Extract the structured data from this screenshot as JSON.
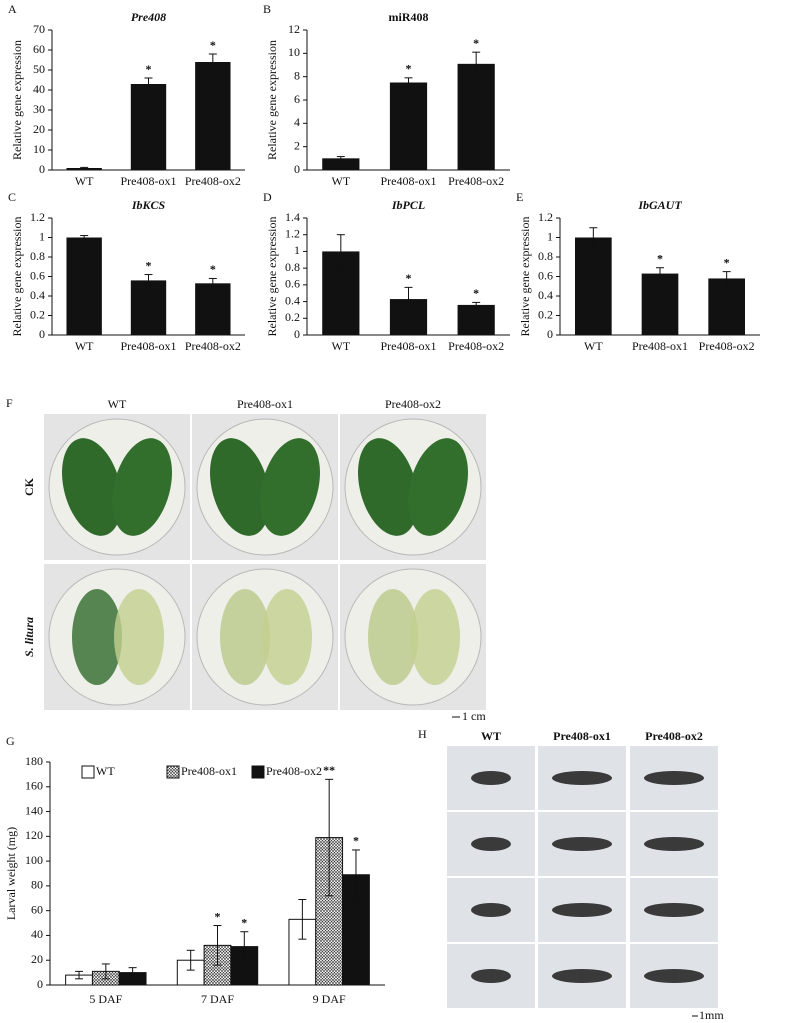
{
  "chart_data": [
    {
      "type": "bar",
      "label": "A",
      "title": "Pre408",
      "title_italic": true,
      "y_label": "Relative gene expression",
      "categories": [
        "WT",
        "Pre408-ox1",
        "Pre408-ox2"
      ],
      "values": [
        1,
        43,
        54
      ],
      "errors": [
        0.3,
        3,
        4
      ],
      "annotations": [
        null,
        "*",
        "*"
      ],
      "color": "#111111",
      "ylim": [
        0,
        70
      ],
      "yticks": [
        0,
        10,
        20,
        30,
        40,
        50,
        60,
        70
      ]
    },
    {
      "type": "bar",
      "label": "B",
      "title": "miR408",
      "title_italic": false,
      "y_label": "Relative gene expression",
      "categories": [
        "WT",
        "Pre408-ox1",
        "Pre408-ox2"
      ],
      "values": [
        1,
        7.5,
        9.1
      ],
      "errors": [
        0.15,
        0.4,
        1
      ],
      "annotations": [
        null,
        "*",
        "*"
      ],
      "color": "#111111",
      "ylim": [
        0,
        12
      ],
      "yticks": [
        0,
        2,
        4,
        6,
        8,
        10,
        12
      ]
    },
    {
      "type": "bar",
      "label": "C",
      "title": "IbKCS",
      "title_italic": true,
      "y_label": "Relative gene expression",
      "categories": [
        "WT",
        "Pre408-ox1",
        "Pre408-ox2"
      ],
      "values": [
        1,
        0.56,
        0.53
      ],
      "errors": [
        0.02,
        0.06,
        0.05
      ],
      "annotations": [
        null,
        "*",
        "*"
      ],
      "color": "#111111",
      "ylim": [
        0,
        1.2
      ],
      "yticks": [
        0,
        0.2,
        0.4,
        0.6,
        0.8,
        1,
        1.2
      ]
    },
    {
      "type": "bar",
      "label": "D",
      "title": "IbPCL",
      "title_italic": true,
      "y_label": "Relative gene expression",
      "categories": [
        "WT",
        "Pre408-ox1",
        "Pre408-ox2"
      ],
      "values": [
        1,
        0.43,
        0.36
      ],
      "errors": [
        0.2,
        0.14,
        0.03
      ],
      "annotations": [
        null,
        "*",
        "*"
      ],
      "color": "#111111",
      "ylim": [
        0,
        1.4
      ],
      "yticks": [
        0,
        0.2,
        0.4,
        0.6,
        0.8,
        1,
        1.2,
        1.4
      ]
    },
    {
      "type": "bar",
      "label": "E",
      "title": "IbGAUT",
      "title_italic": true,
      "y_label": "Relative gene expression",
      "categories": [
        "WT",
        "Pre408-ox1",
        "Pre408-ox2"
      ],
      "values": [
        1,
        0.63,
        0.58
      ],
      "errors": [
        0.1,
        0.06,
        0.07
      ],
      "annotations": [
        null,
        "*",
        "*"
      ],
      "color": "#111111",
      "ylim": [
        0,
        1.2
      ],
      "yticks": [
        0,
        0.2,
        0.4,
        0.6,
        0.8,
        1,
        1.2
      ]
    },
    {
      "type": "grouped_bar",
      "label": "G",
      "y_label": "Larval weight (mg)",
      "categories": [
        "5 DAF",
        "7 DAF",
        "9 DAF"
      ],
      "series": [
        {
          "name": "WT",
          "color": "#ffffff",
          "pattern": "none",
          "values": [
            8,
            20,
            53
          ],
          "errors": [
            3,
            8,
            16
          ],
          "annotations": [
            null,
            null,
            null
          ]
        },
        {
          "name": "Pre408-ox1",
          "color": "#ffffff",
          "pattern": "zigzag",
          "values": [
            11,
            32,
            119
          ],
          "errors": [
            6,
            16,
            47
          ],
          "annotations": [
            null,
            "*",
            "**"
          ]
        },
        {
          "name": "Pre408-ox2",
          "color": "#111111",
          "pattern": "none",
          "values": [
            10,
            31,
            89
          ],
          "errors": [
            4,
            12,
            20
          ],
          "annotations": [
            null,
            "*",
            "*"
          ]
        }
      ],
      "ylim": [
        0,
        180
      ],
      "yticks": [
        0,
        20,
        40,
        60,
        80,
        100,
        120,
        140,
        160,
        180
      ]
    }
  ],
  "photos": {
    "F": {
      "label": "F",
      "columns": [
        "WT",
        "Pre408-ox1",
        "Pre408-ox2"
      ],
      "rows": [
        "CK",
        "S. litura"
      ],
      "scale": "1 cm"
    },
    "H": {
      "label": "H",
      "columns": [
        "WT",
        "Pre408-ox1",
        "Pre408-ox2"
      ],
      "scale": "1mm"
    }
  }
}
